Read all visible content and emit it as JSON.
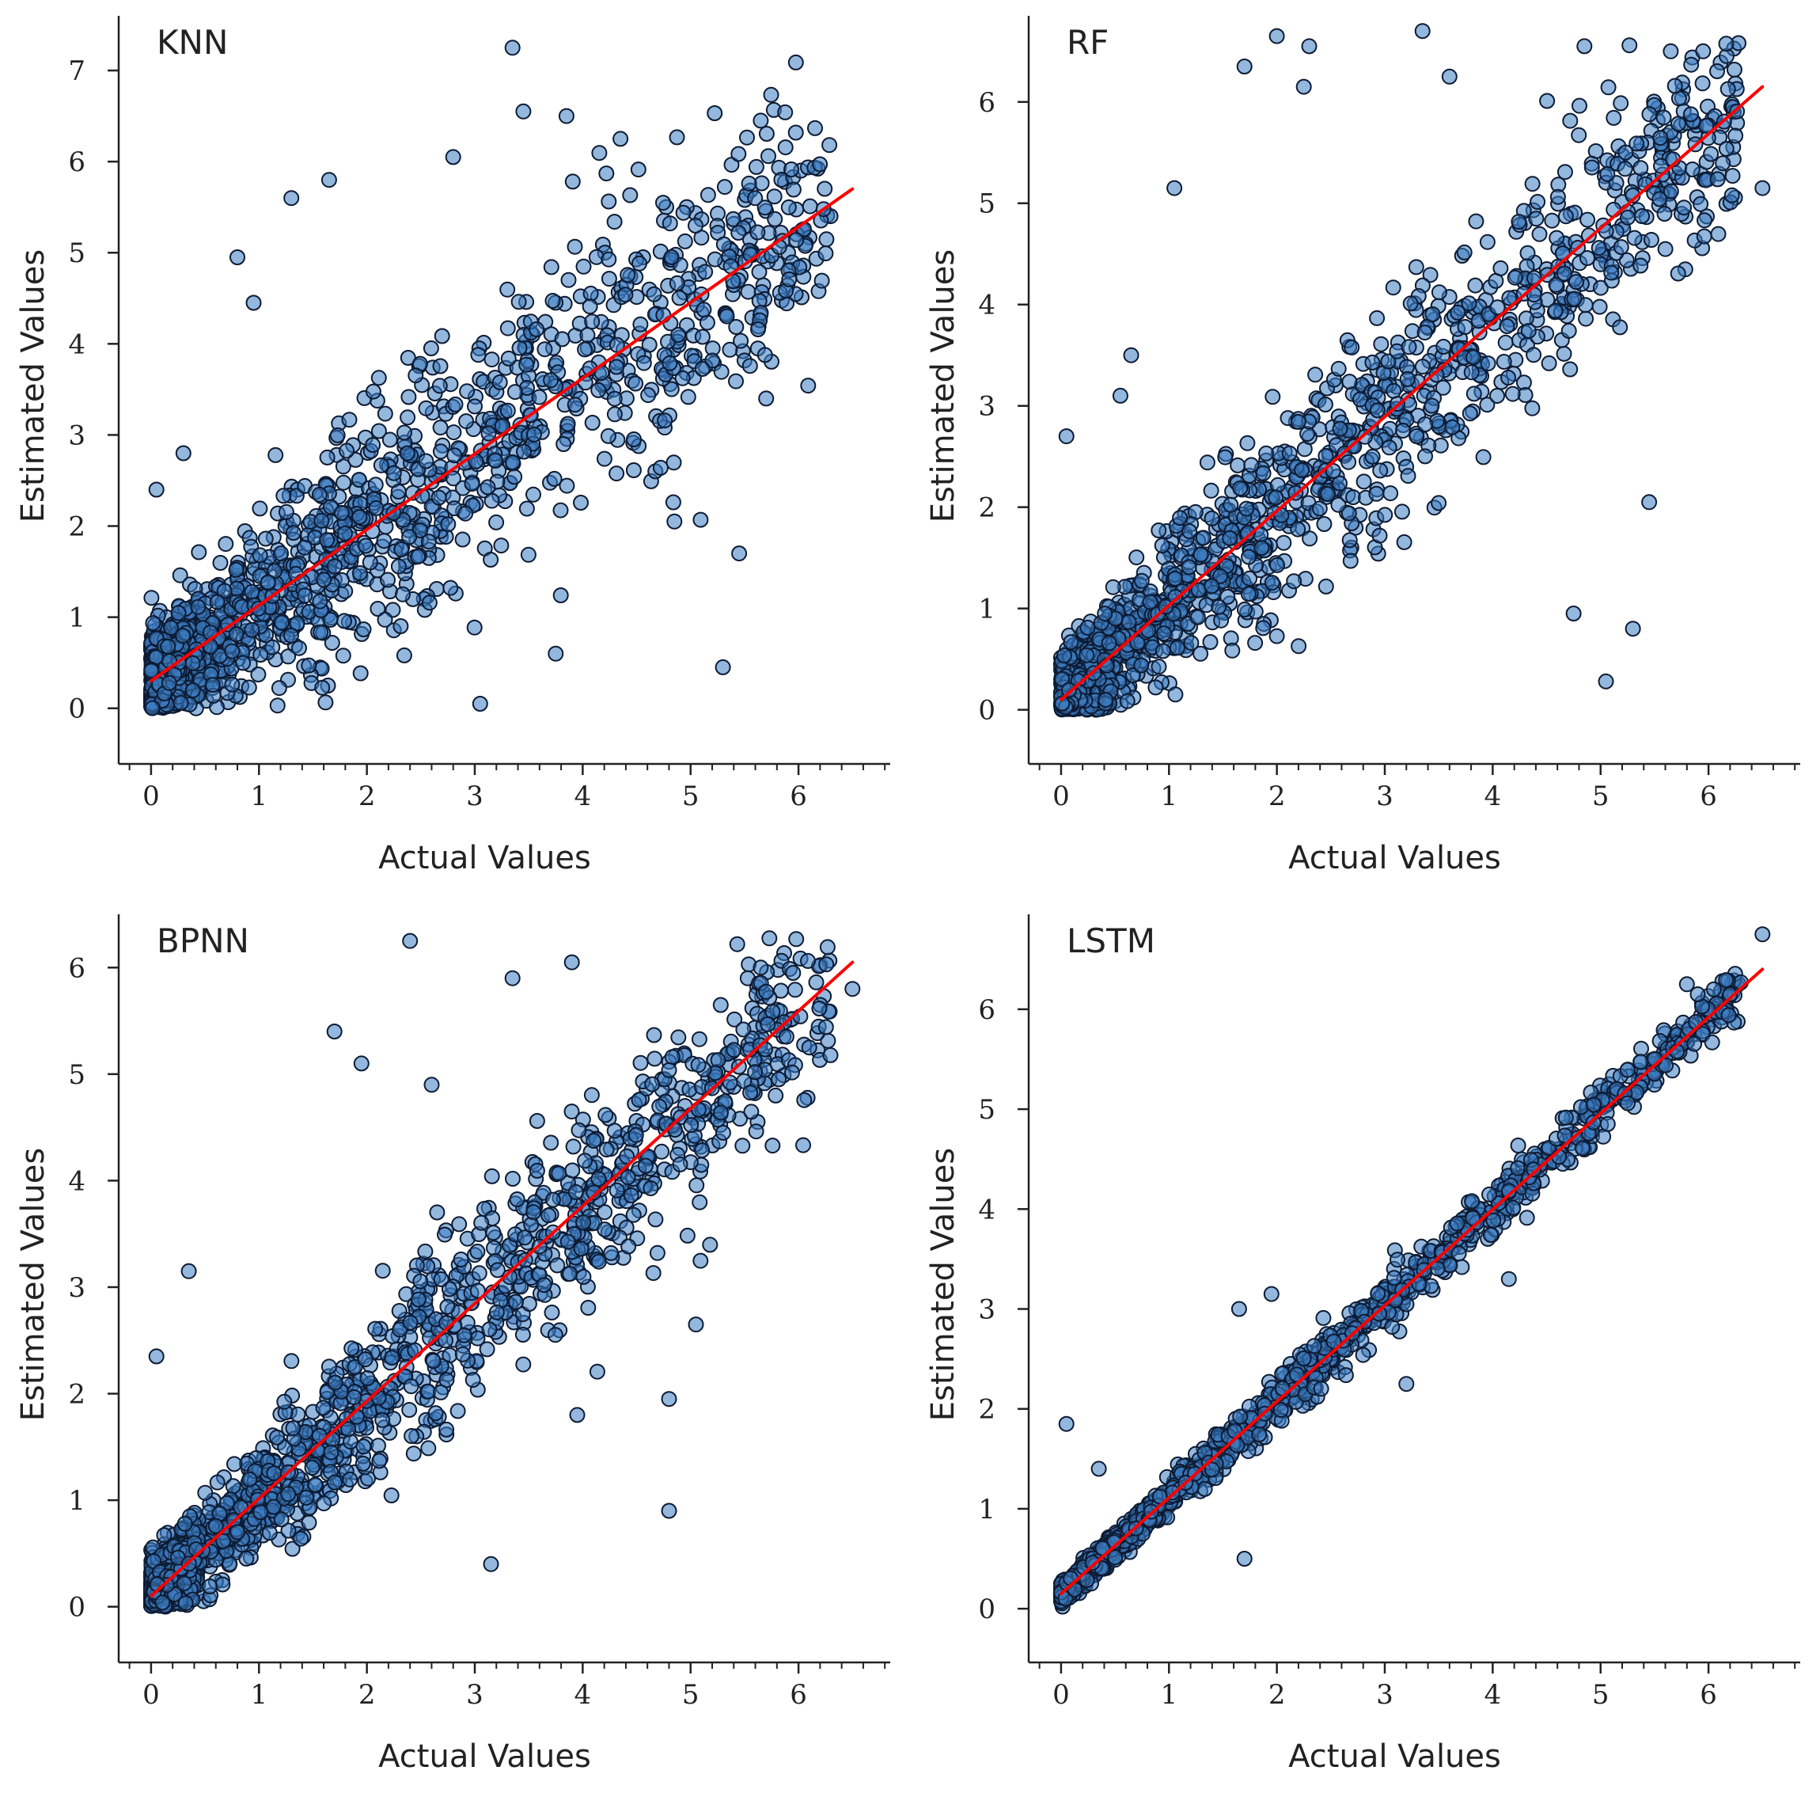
{
  "figure": {
    "marker_fill": "#3d7bc1",
    "marker_edge": "#0d1b33",
    "marker_opacity": 0.55,
    "fit_color": "#ff0000",
    "axis_color": "#222222"
  },
  "chart_data": [
    {
      "type": "scatter",
      "title": "KNN",
      "xlabel": "Actual Values",
      "ylabel": "Estimated Values",
      "xlim": [
        -0.3,
        6.85
      ],
      "ylim": [
        -0.35,
        7.6
      ],
      "xticks": [
        0,
        1,
        2,
        3,
        4,
        5,
        6
      ],
      "yticks": [
        0,
        1,
        2,
        3,
        4,
        5,
        6,
        7
      ],
      "fit": {
        "x": [
          0,
          6.5
        ],
        "y": [
          0.3,
          5.7
        ]
      },
      "cloud": {
        "n": 1700,
        "seed": 11,
        "spread": 0.75,
        "slope": 0.83,
        "intercept": 0.3,
        "ymax": 7.2
      },
      "outliers": [
        [
          3.35,
          7.25
        ],
        [
          3.45,
          6.55
        ],
        [
          3.85,
          6.5
        ],
        [
          4.35,
          6.25
        ],
        [
          5.65,
          6.45
        ],
        [
          2.8,
          6.05
        ],
        [
          1.3,
          5.6
        ],
        [
          1.65,
          5.8
        ],
        [
          0.8,
          4.95
        ],
        [
          0.95,
          4.45
        ],
        [
          5.3,
          0.45
        ],
        [
          3.05,
          0.05
        ],
        [
          3.75,
          0.6
        ],
        [
          5.45,
          1.7
        ],
        [
          5.7,
          3.4
        ],
        [
          4.85,
          2.05
        ],
        [
          0.05,
          2.4
        ],
        [
          0.3,
          2.8
        ]
      ]
    },
    {
      "type": "scatter",
      "title": "RF",
      "xlabel": "Actual Values",
      "ylabel": "Estimated Values",
      "xlim": [
        -0.3,
        6.85
      ],
      "ylim": [
        -0.3,
        6.85
      ],
      "xticks": [
        0,
        1,
        2,
        3,
        4,
        5,
        6
      ],
      "yticks": [
        0,
        1,
        2,
        3,
        4,
        5,
        6
      ],
      "fit": {
        "x": [
          0,
          6.5
        ],
        "y": [
          0.1,
          6.15
        ]
      },
      "cloud": {
        "n": 1700,
        "seed": 23,
        "spread": 0.55,
        "slope": 0.93,
        "intercept": 0.1,
        "ymax": 6.6
      },
      "outliers": [
        [
          2.0,
          6.65
        ],
        [
          2.3,
          6.55
        ],
        [
          3.35,
          6.7
        ],
        [
          4.85,
          6.55
        ],
        [
          5.65,
          6.5
        ],
        [
          5.95,
          6.5
        ],
        [
          1.7,
          6.35
        ],
        [
          2.25,
          6.15
        ],
        [
          3.6,
          6.25
        ],
        [
          1.05,
          5.15
        ],
        [
          6.5,
          5.15
        ],
        [
          5.05,
          0.28
        ],
        [
          5.3,
          0.8
        ],
        [
          5.45,
          2.05
        ],
        [
          4.75,
          0.95
        ],
        [
          0.05,
          2.7
        ],
        [
          0.55,
          3.1
        ],
        [
          0.65,
          3.5
        ]
      ]
    },
    {
      "type": "scatter",
      "title": "BPNN",
      "xlabel": "Actual Values",
      "ylabel": "Estimated Values",
      "xlim": [
        -0.3,
        6.85
      ],
      "ylim": [
        -0.3,
        6.5
      ],
      "xticks": [
        0,
        1,
        2,
        3,
        4,
        5,
        6
      ],
      "yticks": [
        0,
        1,
        2,
        3,
        4,
        5,
        6
      ],
      "fit": {
        "x": [
          0,
          6.5
        ],
        "y": [
          0.1,
          6.05
        ]
      },
      "cloud": {
        "n": 1700,
        "seed": 37,
        "spread": 0.45,
        "slope": 0.915,
        "intercept": 0.1,
        "ymax": 6.3
      },
      "outliers": [
        [
          2.4,
          6.25
        ],
        [
          3.35,
          5.9
        ],
        [
          3.9,
          6.05
        ],
        [
          1.7,
          5.4
        ],
        [
          1.95,
          5.1
        ],
        [
          2.6,
          4.9
        ],
        [
          5.65,
          6.0
        ],
        [
          5.95,
          5.95
        ],
        [
          6.5,
          5.8
        ],
        [
          6.1,
          5.25
        ],
        [
          4.8,
          0.9
        ],
        [
          3.15,
          0.4
        ],
        [
          0.05,
          2.35
        ],
        [
          0.35,
          3.15
        ],
        [
          5.05,
          2.65
        ],
        [
          4.8,
          1.95
        ],
        [
          3.95,
          1.8
        ]
      ]
    },
    {
      "type": "scatter",
      "title": "LSTM",
      "xlabel": "Actual Values",
      "ylabel": "Estimated Values",
      "xlim": [
        -0.3,
        6.85
      ],
      "ylim": [
        -0.3,
        6.95
      ],
      "xticks": [
        0,
        1,
        2,
        3,
        4,
        5,
        6
      ],
      "yticks": [
        0,
        1,
        2,
        3,
        4,
        5,
        6
      ],
      "fit": {
        "x": [
          0,
          6.5
        ],
        "y": [
          0.15,
          6.4
        ]
      },
      "cloud": {
        "n": 1600,
        "seed": 53,
        "spread": 0.13,
        "slope": 0.965,
        "intercept": 0.15,
        "ymax": 6.9
      },
      "outliers": [
        [
          6.5,
          6.75
        ],
        [
          5.8,
          6.25
        ],
        [
          5.9,
          6.15
        ],
        [
          6.05,
          6.2
        ],
        [
          6.2,
          6.15
        ],
        [
          0.05,
          1.85
        ],
        [
          0.35,
          1.4
        ],
        [
          1.7,
          0.5
        ],
        [
          3.2,
          2.25
        ],
        [
          4.15,
          3.3
        ],
        [
          1.95,
          3.15
        ],
        [
          1.65,
          3.0
        ]
      ]
    }
  ]
}
